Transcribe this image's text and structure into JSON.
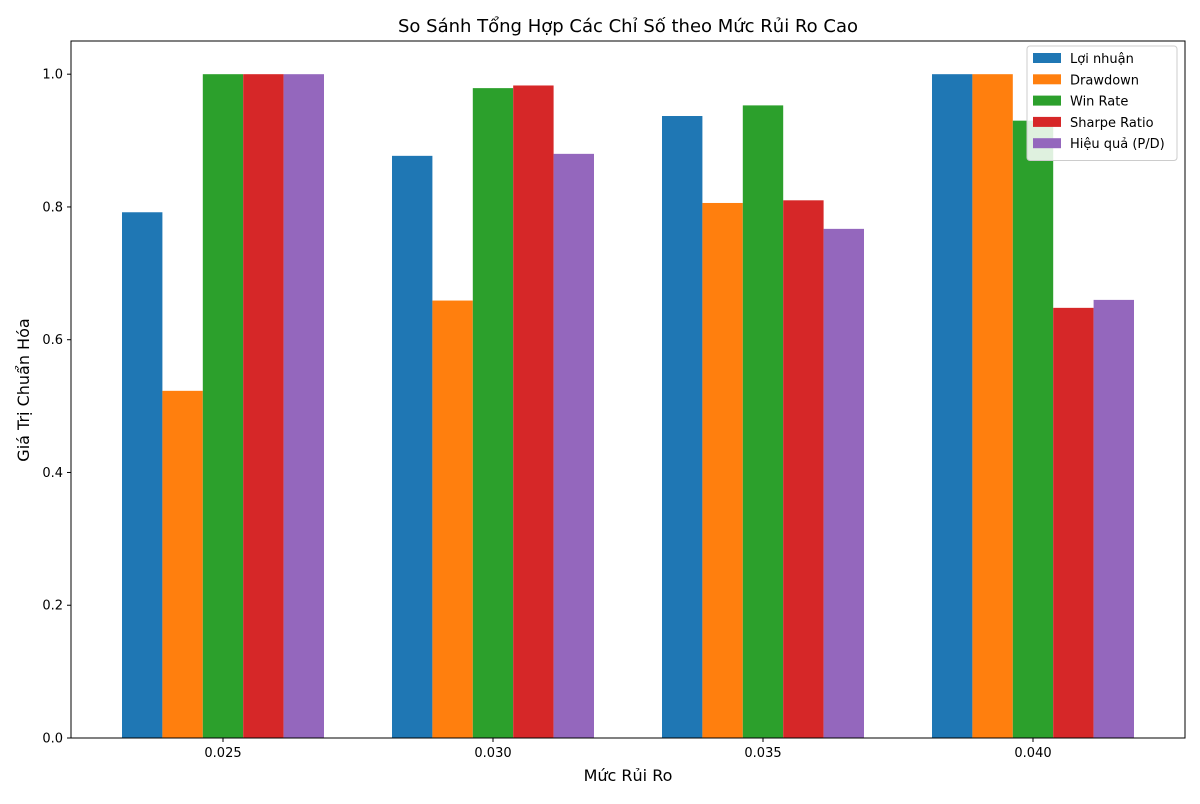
{
  "chart_data": {
    "type": "bar",
    "title": "So Sánh Tổng Hợp Các Chỉ Số theo Mức Rủi Ro Cao",
    "xlabel": "Mức Rủi Ro",
    "ylabel": "Giá Trị Chuẩn Hóa",
    "categories": [
      "0.025",
      "0.030",
      "0.035",
      "0.040"
    ],
    "ylim": [
      0,
      1.05
    ],
    "yticks": [
      0.0,
      0.2,
      0.4,
      0.6,
      0.8,
      1.0
    ],
    "ytick_labels": [
      "0.0",
      "0.2",
      "0.4",
      "0.6",
      "0.8",
      "1.0"
    ],
    "grid": false,
    "legend_position": "top-right",
    "series": [
      {
        "name": "Lợi nhuận",
        "color": "#1f77b4",
        "values": [
          0.792,
          0.877,
          0.937,
          1.0
        ]
      },
      {
        "name": "Drawdown",
        "color": "#ff7f0e",
        "values": [
          0.523,
          0.659,
          0.806,
          1.0
        ]
      },
      {
        "name": "Win Rate",
        "color": "#2ca02c",
        "values": [
          1.0,
          0.979,
          0.953,
          0.93
        ]
      },
      {
        "name": "Sharpe Ratio",
        "color": "#d62728",
        "values": [
          1.0,
          0.983,
          0.81,
          0.648
        ]
      },
      {
        "name": "Hiệu quả (P/D)",
        "color": "#9467bd",
        "values": [
          1.0,
          0.88,
          0.767,
          0.66
        ]
      }
    ]
  }
}
